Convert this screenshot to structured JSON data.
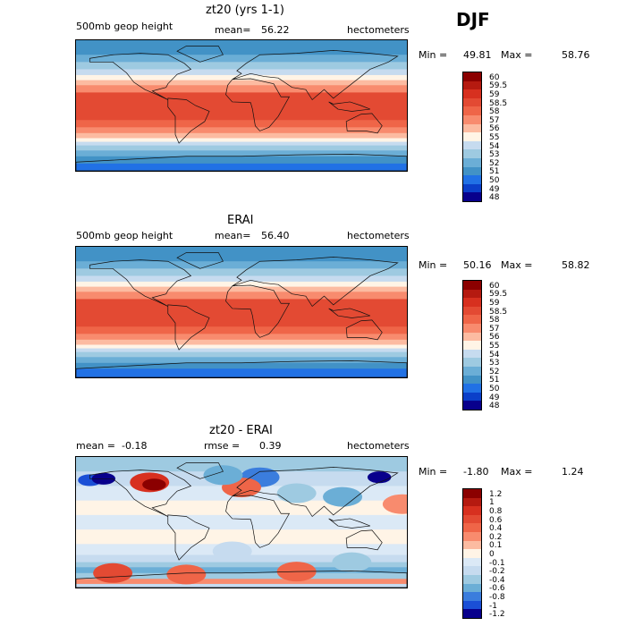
{
  "season": "DJF",
  "chart_data": [
    {
      "type": "heatmap",
      "title": "zt20 (yrs 1-1)",
      "left_label": "500mb geop height",
      "mean_label": "mean=",
      "mean_value": "56.22",
      "right_label": "hectometers",
      "min_label": "Min =",
      "min_value": "49.81",
      "max_label": "Max =",
      "max_value": "58.76",
      "levels": [
        "60",
        "59.5",
        "59",
        "58.5",
        "58",
        "57",
        "56",
        "55",
        "54",
        "53",
        "52",
        "51",
        "50",
        "49",
        "48"
      ],
      "colors": [
        "#8b0000",
        "#b51a10",
        "#d7301f",
        "#e34a33",
        "#ef6548",
        "#f88b6e",
        "#fcbba1",
        "#fff4e6",
        "#c6dbef",
        "#9ecae1",
        "#6baed6",
        "#4292c6",
        "#2171e5",
        "#0b3fc9",
        "#08008c"
      ],
      "bands": [
        {
          "lat": 90,
          "level": "51"
        },
        {
          "lat": 70,
          "level": "52"
        },
        {
          "lat": 60,
          "level": "53"
        },
        {
          "lat": 50,
          "level": "54"
        },
        {
          "lat": 42,
          "level": "55"
        },
        {
          "lat": 35,
          "level": "56"
        },
        {
          "lat": 28,
          "level": "57"
        },
        {
          "lat": 18,
          "level": "58.5"
        },
        {
          "lat": -20,
          "level": "58"
        },
        {
          "lat": -30,
          "level": "57"
        },
        {
          "lat": -38,
          "level": "56"
        },
        {
          "lat": -45,
          "level": "55"
        },
        {
          "lat": -50,
          "level": "54"
        },
        {
          "lat": -55,
          "level": "53"
        },
        {
          "lat": -62,
          "level": "52"
        },
        {
          "lat": -70,
          "level": "51"
        },
        {
          "lat": -80,
          "level": "50"
        }
      ]
    },
    {
      "type": "heatmap",
      "title": "ERAI",
      "left_label": "500mb geop height",
      "mean_label": "mean=",
      "mean_value": "56.40",
      "right_label": "hectometers",
      "min_label": "Min =",
      "min_value": "50.16",
      "max_label": "Max =",
      "max_value": "58.82",
      "levels": [
        "60",
        "59.5",
        "59",
        "58.5",
        "58",
        "57",
        "56",
        "55",
        "54",
        "53",
        "52",
        "51",
        "50",
        "49",
        "48"
      ],
      "colors": [
        "#8b0000",
        "#b51a10",
        "#d7301f",
        "#e34a33",
        "#ef6548",
        "#f88b6e",
        "#fcbba1",
        "#fff4e6",
        "#c6dbef",
        "#9ecae1",
        "#6baed6",
        "#4292c6",
        "#2171e5",
        "#0b3fc9",
        "#08008c"
      ],
      "bands": [
        {
          "lat": 90,
          "level": "51"
        },
        {
          "lat": 70,
          "level": "52"
        },
        {
          "lat": 60,
          "level": "53"
        },
        {
          "lat": 50,
          "level": "54"
        },
        {
          "lat": 42,
          "level": "55"
        },
        {
          "lat": 35,
          "level": "56"
        },
        {
          "lat": 28,
          "level": "57"
        },
        {
          "lat": 18,
          "level": "58.5"
        },
        {
          "lat": -20,
          "level": "58"
        },
        {
          "lat": -30,
          "level": "57"
        },
        {
          "lat": -38,
          "level": "56"
        },
        {
          "lat": -45,
          "level": "55"
        },
        {
          "lat": -50,
          "level": "54"
        },
        {
          "lat": -55,
          "level": "53"
        },
        {
          "lat": -62,
          "level": "52"
        },
        {
          "lat": -70,
          "level": "51"
        },
        {
          "lat": -78,
          "level": "50"
        }
      ]
    },
    {
      "type": "heatmap",
      "title": "zt20 - ERAI",
      "left_label": "mean =",
      "left_value": "-0.18",
      "mean_label": "rmse =",
      "mean_value": "0.39",
      "right_label": "hectometers",
      "min_label": "Min =",
      "min_value": "-1.80",
      "max_label": "Max =",
      "max_value": "1.24",
      "levels": [
        "1.2",
        "1",
        "0.8",
        "0.6",
        "0.4",
        "0.2",
        "0.1",
        "0",
        "-0.1",
        "-0.2",
        "-0.4",
        "-0.6",
        "-0.8",
        "-1",
        "-1.2"
      ],
      "colors": [
        "#8b0000",
        "#b51a10",
        "#d7301f",
        "#e34a33",
        "#ef6548",
        "#f88b6e",
        "#fcbba1",
        "#fff4e6",
        "#dbe9f6",
        "#c6dbef",
        "#9ecae1",
        "#6baed6",
        "#3b7ddd",
        "#1a4fd6",
        "#08008c"
      ],
      "bands": [
        {
          "lat": 90,
          "level": "-0.4"
        },
        {
          "lat": 70,
          "level": "-0.2"
        },
        {
          "lat": 50,
          "level": "-0.1"
        },
        {
          "lat": 30,
          "level": "0"
        },
        {
          "lat": 10,
          "level": "-0.1"
        },
        {
          "lat": -10,
          "level": "0"
        },
        {
          "lat": -30,
          "level": "-0.1"
        },
        {
          "lat": -45,
          "level": "-0.2"
        },
        {
          "lat": -55,
          "level": "-0.4"
        },
        {
          "lat": -62,
          "level": "-0.6"
        },
        {
          "lat": -70,
          "level": "-0.4"
        },
        {
          "lat": -78,
          "level": "0.2"
        },
        {
          "lat": -85,
          "level": "-0.2"
        }
      ],
      "anomalies": [
        {
          "lon": -100,
          "lat": 55,
          "level": "0.8"
        },
        {
          "lon": -95,
          "lat": 52,
          "level": "1.2"
        },
        {
          "lon": -165,
          "lat": 58,
          "level": "-1"
        },
        {
          "lon": -150,
          "lat": 60,
          "level": "-1.2"
        },
        {
          "lon": 150,
          "lat": 62,
          "level": "-1.2"
        },
        {
          "lon": 20,
          "lat": 62,
          "level": "-0.8"
        },
        {
          "lon": 0,
          "lat": 48,
          "level": "0.4"
        },
        {
          "lon": 60,
          "lat": 40,
          "level": "-0.4"
        },
        {
          "lon": 110,
          "lat": 35,
          "level": "-0.6"
        },
        {
          "lon": -20,
          "lat": 65,
          "level": "-0.6"
        },
        {
          "lon": 175,
          "lat": 25,
          "level": "0.2"
        },
        {
          "lon": -140,
          "lat": -70,
          "level": "0.6"
        },
        {
          "lon": -60,
          "lat": -72,
          "level": "0.4"
        },
        {
          "lon": 60,
          "lat": -68,
          "level": "0.4"
        },
        {
          "lon": 120,
          "lat": -55,
          "level": "-0.4"
        },
        {
          "lon": -10,
          "lat": -40,
          "level": "-0.2"
        }
      ]
    }
  ]
}
